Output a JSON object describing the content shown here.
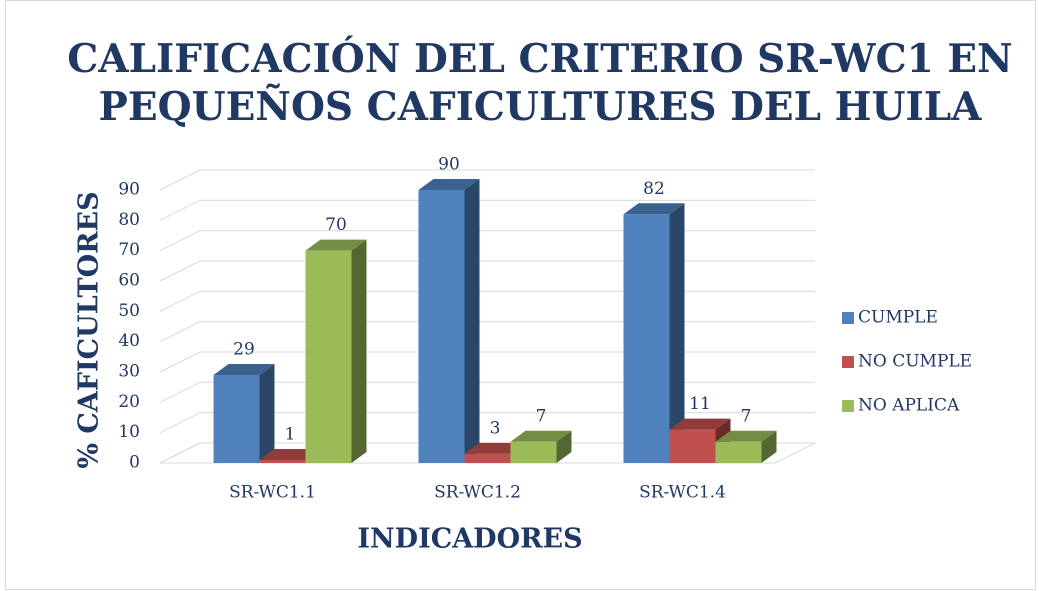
{
  "chart_data": {
    "type": "bar3d",
    "title": "CALIFICACIÓN DEL CRITERIO SR-WC1 EN PEQUEÑOS CAFICULTURES DEL HUILA",
    "xlabel": "INDICADORES",
    "ylabel": "% CAFICULTORES",
    "categories": [
      "SR-WC1.1",
      "SR-WC1.2",
      "SR-WC1.4"
    ],
    "series": [
      {
        "name": "CUMPLE",
        "color": "#4f81bd",
        "values": [
          29,
          90,
          82
        ]
      },
      {
        "name": "NO CUMPLE",
        "color": "#c0504d",
        "values": [
          1,
          3,
          11
        ]
      },
      {
        "name": "NO APLICA",
        "color": "#9bbb59",
        "values": [
          70,
          7,
          7
        ]
      }
    ],
    "ylim": [
      0,
      90
    ],
    "yticks": [
      0,
      10,
      20,
      30,
      40,
      50,
      60,
      70,
      80,
      90
    ],
    "grid": true,
    "legend": "right"
  }
}
